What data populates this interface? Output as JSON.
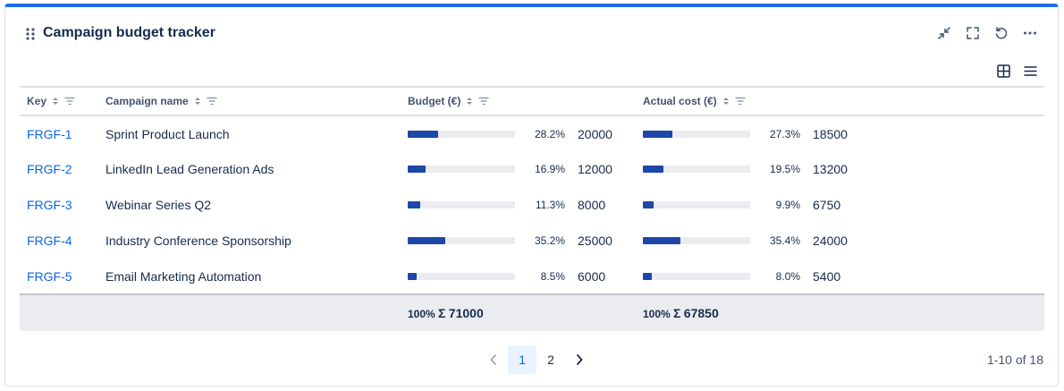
{
  "widget": {
    "title": "Campaign budget tracker"
  },
  "header_actions": [
    {
      "name": "collapse-icon"
    },
    {
      "name": "expand-icon"
    },
    {
      "name": "refresh-icon"
    },
    {
      "name": "more-icon"
    }
  ],
  "view_toggles": [
    {
      "name": "grid-view-icon"
    },
    {
      "name": "list-view-icon"
    }
  ],
  "table": {
    "columns": {
      "key": "Key",
      "name": "Campaign name",
      "budget": "Budget (€)",
      "actual": "Actual cost (€)"
    },
    "rows": [
      {
        "key": "FRGF-1",
        "name": "Sprint Product Launch",
        "budget_pct": "28.2%",
        "budget_frac": 0.282,
        "budget": "20000",
        "actual_pct": "27.3%",
        "actual_frac": 0.273,
        "actual": "18500"
      },
      {
        "key": "FRGF-2",
        "name": "LinkedIn Lead Generation Ads",
        "budget_pct": "16.9%",
        "budget_frac": 0.169,
        "budget": "12000",
        "actual_pct": "19.5%",
        "actual_frac": 0.195,
        "actual": "13200"
      },
      {
        "key": "FRGF-3",
        "name": "Webinar Series Q2",
        "budget_pct": "11.3%",
        "budget_frac": 0.113,
        "budget": "8000",
        "actual_pct": "9.9%",
        "actual_frac": 0.099,
        "actual": "6750"
      },
      {
        "key": "FRGF-4",
        "name": "Industry Conference Sponsorship",
        "budget_pct": "35.2%",
        "budget_frac": 0.352,
        "budget": "25000",
        "actual_pct": "35.4%",
        "actual_frac": 0.354,
        "actual": "24000"
      },
      {
        "key": "FRGF-5",
        "name": "Email Marketing Automation",
        "budget_pct": "8.5%",
        "budget_frac": 0.085,
        "budget": "6000",
        "actual_pct": "8.0%",
        "actual_frac": 0.08,
        "actual": "5400"
      }
    ],
    "totals": {
      "budget_pct": "100%",
      "budget_sigma": "Σ",
      "budget_sum": "71000",
      "actual_pct": "100%",
      "actual_sigma": "Σ",
      "actual_sum": "67850"
    }
  },
  "pagination": {
    "prev": "‹",
    "pages": [
      "1",
      "2"
    ],
    "current": "1",
    "next": "›",
    "range": "1-10 of 18"
  },
  "colors": {
    "accent": "#1f6feb",
    "link": "#0c66e4",
    "bar": "#1d47a8",
    "bar_track": "#ebecf0",
    "footer_bg": "#ebecf0"
  }
}
